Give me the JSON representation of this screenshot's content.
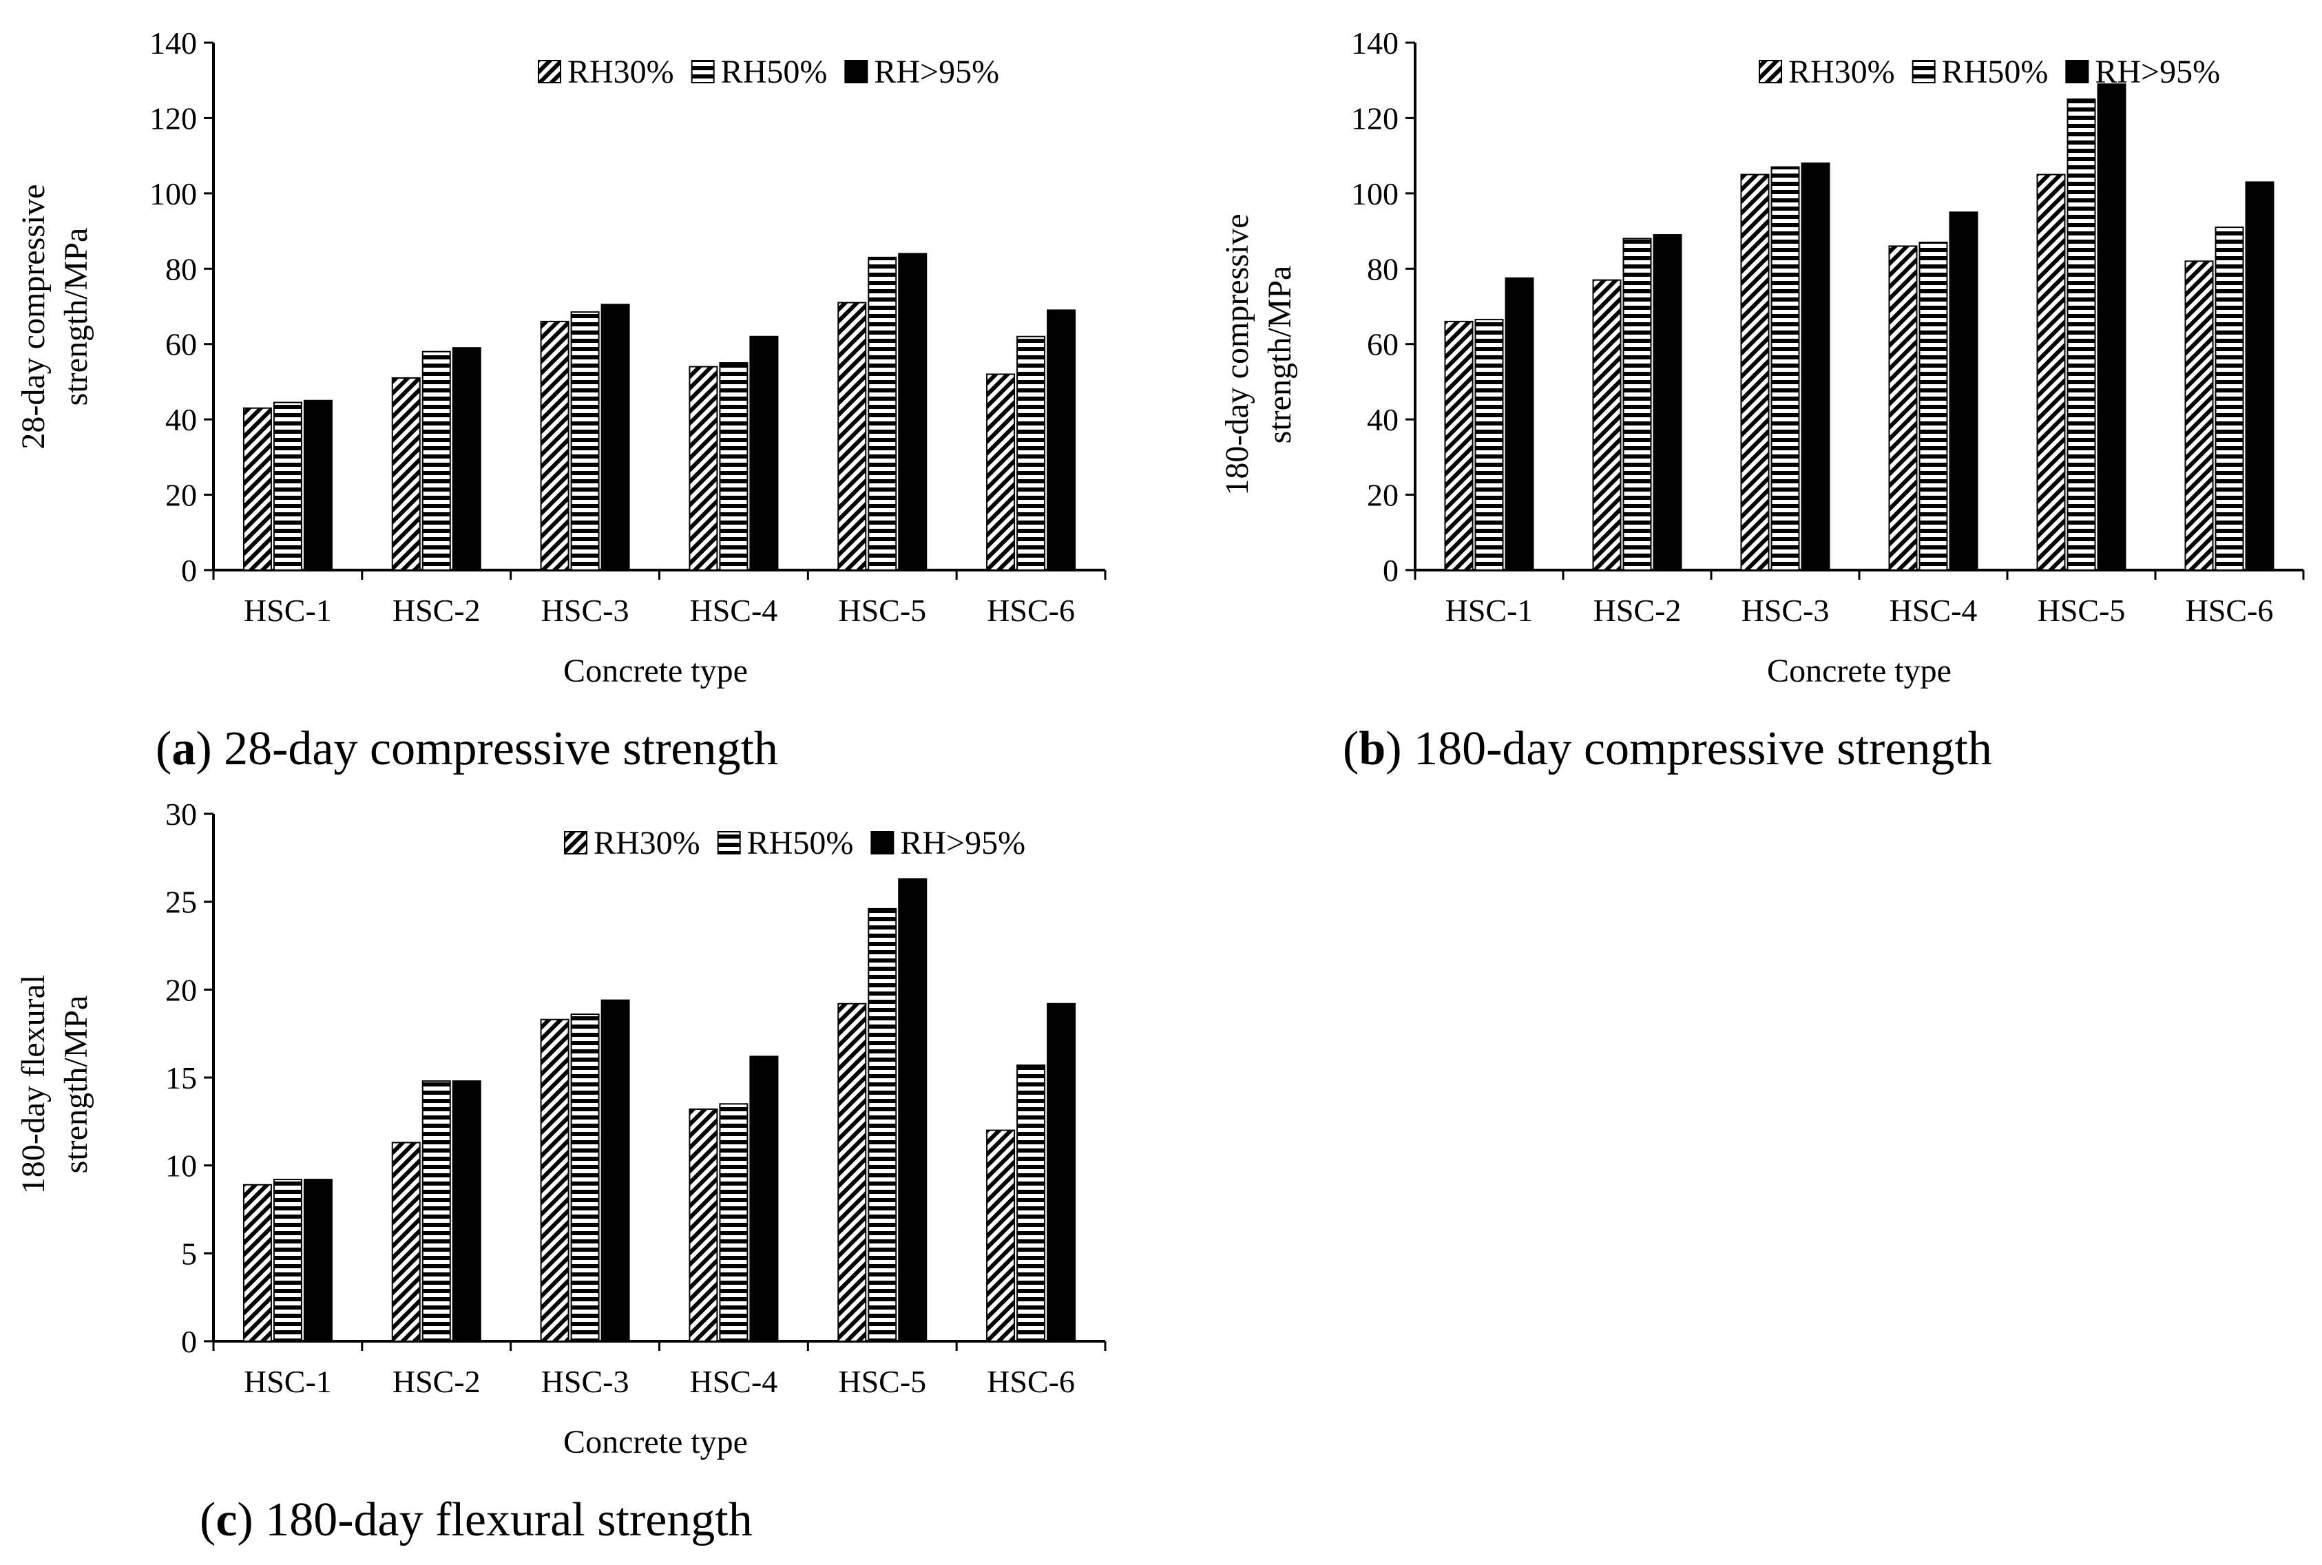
{
  "colors": {
    "ink": "#000000",
    "background": "#ffffff"
  },
  "legend_labels": [
    "RH30%",
    "RH50%",
    "RH>95%"
  ],
  "chart_data": [
    {
      "type": "bar",
      "panel": "a",
      "caption_letter": "a",
      "caption_text": " 28-day compressive strength",
      "title": "28-day compressive strength",
      "categories": [
        "HSC-1",
        "HSC-2",
        "HSC-3",
        "HSC-4",
        "HSC-5",
        "HSC-6"
      ],
      "series": [
        {
          "name": "RH30%",
          "pattern": "diagonal",
          "values": [
            43,
            51,
            66,
            54,
            71,
            52
          ]
        },
        {
          "name": "RH50%",
          "pattern": "horizontal",
          "values": [
            44.5,
            58,
            68.5,
            55,
            83,
            62
          ]
        },
        {
          "name": "RH>95%",
          "pattern": "solid",
          "values": [
            45,
            59,
            70.5,
            62,
            84,
            69
          ]
        }
      ],
      "xlabel": "Concrete type",
      "ylabel_lines": [
        "28-day compressive",
        "strength/MPa"
      ],
      "ylim": [
        0,
        140
      ],
      "yticks": [
        "0",
        "20",
        "40",
        "60",
        "80",
        "100",
        "120",
        "140"
      ],
      "legend_position": "top-right"
    },
    {
      "type": "bar",
      "panel": "b",
      "caption_letter": "b",
      "caption_text": " 180-day compressive strength",
      "title": "180-day compressive strength",
      "categories": [
        "HSC-1",
        "HSC-2",
        "HSC-3",
        "HSC-4",
        "HSC-5",
        "HSC-6"
      ],
      "series": [
        {
          "name": "RH30%",
          "pattern": "diagonal",
          "values": [
            66,
            77,
            105,
            86,
            105,
            82
          ]
        },
        {
          "name": "RH50%",
          "pattern": "horizontal",
          "values": [
            66.5,
            88,
            107,
            87,
            125,
            91
          ]
        },
        {
          "name": "RH>95%",
          "pattern": "solid",
          "values": [
            77.5,
            89,
            108,
            95,
            129,
            103
          ]
        }
      ],
      "xlabel": "Concrete type",
      "ylabel_lines": [
        "180-day compressive",
        "strength/MPa"
      ],
      "ylim": [
        0,
        140
      ],
      "yticks": [
        "0",
        "20",
        "40",
        "60",
        "80",
        "100",
        "120",
        "140"
      ],
      "legend_position": "top-right"
    },
    {
      "type": "bar",
      "panel": "c",
      "caption_letter": "c",
      "caption_text": " 180-day flexural strength",
      "title": "180-day flexural strength",
      "categories": [
        "HSC-1",
        "HSC-2",
        "HSC-3",
        "HSC-4",
        "HSC-5",
        "HSC-6"
      ],
      "series": [
        {
          "name": "RH30%",
          "pattern": "diagonal",
          "values": [
            8.9,
            11.3,
            18.3,
            13.2,
            19.2,
            12.0
          ]
        },
        {
          "name": "RH50%",
          "pattern": "horizontal",
          "values": [
            9.2,
            14.8,
            18.6,
            13.5,
            24.6,
            15.7
          ]
        },
        {
          "name": "RH>95%",
          "pattern": "solid",
          "values": [
            9.2,
            14.8,
            19.4,
            16.2,
            26.3,
            19.2
          ]
        }
      ],
      "xlabel": "Concrete type",
      "ylabel_lines": [
        "180-day flexural",
        "strength/MPa"
      ],
      "ylim": [
        0,
        30
      ],
      "yticks": [
        "0",
        "5",
        "10",
        "15",
        "20",
        "25",
        "30"
      ],
      "legend_position": "top-right"
    }
  ]
}
